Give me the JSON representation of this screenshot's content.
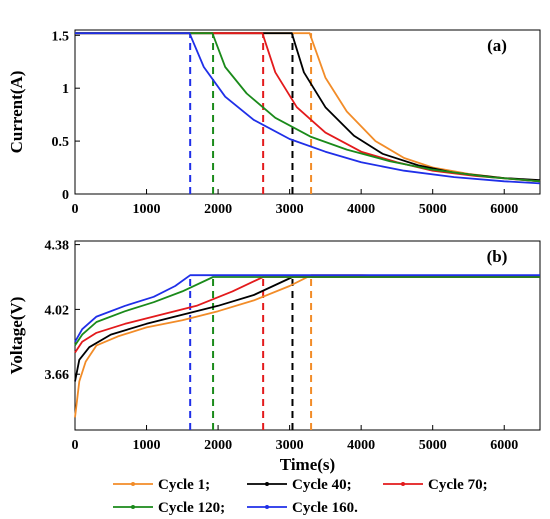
{
  "chart_data": [
    {
      "id": "a",
      "type": "line",
      "panel_label": "(a)",
      "ylabel": "Current(A)",
      "xlabel": "",
      "xlim": [
        0,
        6500
      ],
      "ylim": [
        0,
        1.55
      ],
      "xticks": [
        "0",
        "1000",
        "2000",
        "3000",
        "4000",
        "5000",
        "6000"
      ],
      "xtick_values": [
        0,
        1000,
        2000,
        3000,
        4000,
        5000,
        6000
      ],
      "yticks": [
        "0",
        "0.5",
        "1",
        "1.5"
      ],
      "ytick_values": [
        0,
        0.5,
        1,
        1.5
      ],
      "series": [
        {
          "name": "Cycle 1;",
          "color": "#f28c28",
          "points": [
            [
              0,
              1.52
            ],
            [
              3280,
              1.52
            ],
            [
              3500,
              1.1
            ],
            [
              3800,
              0.78
            ],
            [
              4200,
              0.5
            ],
            [
              4600,
              0.34
            ],
            [
              5000,
              0.25
            ],
            [
              5500,
              0.19
            ],
            [
              6000,
              0.15
            ],
            [
              6500,
              0.12
            ]
          ],
          "marker_x": 3300
        },
        {
          "name": "Cycle 40;",
          "color": "#000000",
          "points": [
            [
              0,
              1.52
            ],
            [
              3030,
              1.52
            ],
            [
              3200,
              1.15
            ],
            [
              3500,
              0.82
            ],
            [
              3900,
              0.55
            ],
            [
              4300,
              0.38
            ],
            [
              4800,
              0.27
            ],
            [
              5300,
              0.2
            ],
            [
              6000,
              0.15
            ],
            [
              6500,
              0.13
            ]
          ],
          "marker_x": 3040
        },
        {
          "name": "Cycle 70;",
          "color": "#e31a1c",
          "points": [
            [
              0,
              1.52
            ],
            [
              2620,
              1.52
            ],
            [
              2800,
              1.15
            ],
            [
              3100,
              0.82
            ],
            [
              3500,
              0.58
            ],
            [
              4000,
              0.4
            ],
            [
              4500,
              0.3
            ],
            [
              5000,
              0.22
            ],
            [
              5600,
              0.17
            ],
            [
              6500,
              0.12
            ]
          ],
          "marker_x": 2630
        },
        {
          "name": "Cycle 120;",
          "color": "#1a8a1a",
          "points": [
            [
              0,
              1.52
            ],
            [
              1920,
              1.52
            ],
            [
              2100,
              1.2
            ],
            [
              2400,
              0.95
            ],
            [
              2800,
              0.72
            ],
            [
              3300,
              0.54
            ],
            [
              3800,
              0.42
            ],
            [
              4400,
              0.31
            ],
            [
              5000,
              0.23
            ],
            [
              5800,
              0.16
            ],
            [
              6500,
              0.12
            ]
          ],
          "marker_x": 1930
        },
        {
          "name": "Cycle 160.",
          "color": "#1f2fe8",
          "points": [
            [
              0,
              1.52
            ],
            [
              1600,
              1.52
            ],
            [
              1800,
              1.2
            ],
            [
              2100,
              0.92
            ],
            [
              2500,
              0.7
            ],
            [
              3000,
              0.52
            ],
            [
              3500,
              0.4
            ],
            [
              4000,
              0.3
            ],
            [
              4600,
              0.22
            ],
            [
              5300,
              0.16
            ],
            [
              6000,
              0.12
            ],
            [
              6500,
              0.1
            ]
          ],
          "marker_x": 1610
        }
      ]
    },
    {
      "id": "b",
      "type": "line",
      "panel_label": "(b)",
      "ylabel": "Voltage(V)",
      "xlabel": "Time(s)",
      "xlim": [
        0,
        6500
      ],
      "ylim": [
        3.35,
        4.4
      ],
      "xticks": [
        "0",
        "1000",
        "2000",
        "3000",
        "4000",
        "5000",
        "6000"
      ],
      "xtick_values": [
        0,
        1000,
        2000,
        3000,
        4000,
        5000,
        6000
      ],
      "yticks": [
        "3.66",
        "4.02",
        "4.38"
      ],
      "ytick_values": [
        3.66,
        4.02,
        4.38
      ],
      "series": [
        {
          "name": "Cycle 1;",
          "color": "#f28c28",
          "points": [
            [
              0,
              3.42
            ],
            [
              60,
              3.62
            ],
            [
              150,
              3.73
            ],
            [
              300,
              3.82
            ],
            [
              600,
              3.87
            ],
            [
              1000,
              3.92
            ],
            [
              1500,
              3.96
            ],
            [
              2000,
              4.01
            ],
            [
              2500,
              4.07
            ],
            [
              3000,
              4.15
            ],
            [
              3300,
              4.21
            ],
            [
              4000,
              4.21
            ],
            [
              5000,
              4.2
            ],
            [
              6500,
              4.2
            ]
          ],
          "marker_x": 3300
        },
        {
          "name": "Cycle 40;",
          "color": "#000000",
          "points": [
            [
              0,
              3.62
            ],
            [
              60,
              3.74
            ],
            [
              200,
              3.81
            ],
            [
              500,
              3.88
            ],
            [
              1000,
              3.94
            ],
            [
              1500,
              3.99
            ],
            [
              2000,
              4.04
            ],
            [
              2500,
              4.1
            ],
            [
              3040,
              4.2
            ],
            [
              4000,
              4.2
            ],
            [
              5000,
              4.2
            ],
            [
              6500,
              4.2
            ]
          ],
          "marker_x": 3040
        },
        {
          "name": "Cycle 70;",
          "color": "#e31a1c",
          "points": [
            [
              0,
              3.78
            ],
            [
              100,
              3.84
            ],
            [
              300,
              3.89
            ],
            [
              700,
              3.94
            ],
            [
              1200,
              3.99
            ],
            [
              1700,
              4.04
            ],
            [
              2200,
              4.12
            ],
            [
              2630,
              4.2
            ],
            [
              4000,
              4.2
            ],
            [
              5000,
              4.2
            ],
            [
              6500,
              4.2
            ]
          ],
          "marker_x": 2630
        },
        {
          "name": "Cycle 120;",
          "color": "#1a8a1a",
          "points": [
            [
              0,
              3.82
            ],
            [
              100,
              3.88
            ],
            [
              300,
              3.95
            ],
            [
              700,
              4.01
            ],
            [
              1100,
              4.06
            ],
            [
              1500,
              4.12
            ],
            [
              1930,
              4.2
            ],
            [
              4000,
              4.2
            ],
            [
              5000,
              4.2
            ],
            [
              6500,
              4.2
            ]
          ],
          "marker_x": 1930
        },
        {
          "name": "Cycle 160.",
          "color": "#1f2fe8",
          "points": [
            [
              0,
              3.84
            ],
            [
              100,
              3.91
            ],
            [
              300,
              3.98
            ],
            [
              700,
              4.04
            ],
            [
              1100,
              4.09
            ],
            [
              1400,
              4.15
            ],
            [
              1610,
              4.21
            ],
            [
              4000,
              4.21
            ],
            [
              5000,
              4.21
            ],
            [
              6500,
              4.21
            ]
          ],
          "marker_x": 1610
        }
      ]
    }
  ],
  "legend": {
    "rows": [
      [
        "Cycle 1;",
        "Cycle 40;",
        "Cycle 70;"
      ],
      [
        "Cycle 120;",
        "Cycle 160."
      ]
    ],
    "colors": {
      "Cycle 1;": "#f28c28",
      "Cycle 40;": "#000000",
      "Cycle 70;": "#e31a1c",
      "Cycle 120;": "#1a8a1a",
      "Cycle 160.": "#1f2fe8"
    }
  }
}
